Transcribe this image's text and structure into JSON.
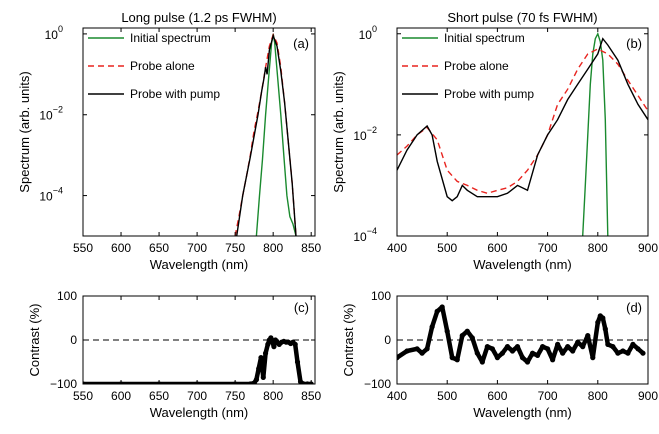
{
  "chart_data": [
    {
      "id": "a",
      "type": "line",
      "title": "Long pulse (1.2 ps FWHM)",
      "panel_label": "(a)",
      "xlabel": "Wavelength (nm)",
      "ylabel": "Spectrum (arb. units)",
      "x_ticks": [
        550,
        600,
        650,
        700,
        750,
        800,
        850
      ],
      "x_tick_labels": [
        "550",
        "600",
        "650",
        "700",
        "750",
        "800",
        "850"
      ],
      "y_scale": "log",
      "y_ticks": [
        1,
        0.01,
        0.0001
      ],
      "y_tick_labels": [
        {
          "base": "10",
          "exp": "0"
        },
        {
          "base": "10",
          "exp": "−2"
        },
        {
          "base": "10",
          "exp": "−4"
        }
      ],
      "xlim": [
        550,
        855
      ],
      "ylim": [
        1e-05,
        1.4
      ],
      "legend_position": "top-left",
      "series": [
        {
          "name": "Initial spectrum",
          "color": "#1a8a2e",
          "dash": "solid",
          "x": [
            778,
            782,
            786,
            790,
            794,
            798,
            800,
            802,
            806,
            810,
            814,
            818,
            822,
            826,
            830
          ],
          "y": [
            1e-05,
            0.0001,
            0.0008,
            0.01,
            0.08,
            0.6,
            1.0,
            0.6,
            0.08,
            0.01,
            0.001,
            0.0001,
            3e-05,
            2e-05,
            1e-05
          ]
        },
        {
          "name": "Probe alone",
          "color": "#e8241f",
          "dash": "6,4",
          "x": [
            750,
            755,
            760,
            765,
            770,
            775,
            780,
            785,
            790,
            795,
            800,
            805,
            810,
            815,
            820,
            825,
            830
          ],
          "y": [
            1e-05,
            3e-05,
            0.0001,
            0.0003,
            0.001,
            0.004,
            0.012,
            0.04,
            0.15,
            0.5,
            0.95,
            0.6,
            0.15,
            0.02,
            0.002,
            0.0002,
            1e-05
          ]
        },
        {
          "name": "Probe with pump",
          "color": "#000000",
          "dash": "solid",
          "x": [
            752,
            760,
            770,
            780,
            785,
            788,
            790,
            792,
            795,
            800,
            805,
            810,
            815,
            820,
            825,
            830
          ],
          "y": [
            1e-05,
            0.0001,
            0.0009,
            0.01,
            0.04,
            0.08,
            0.15,
            0.1,
            0.4,
            0.9,
            0.5,
            0.12,
            0.02,
            0.002,
            0.0002,
            1e-05
          ]
        }
      ]
    },
    {
      "id": "b",
      "type": "line",
      "title": "Short pulse (70 fs FWHM)",
      "panel_label": "(b)",
      "xlabel": "Wavelength (nm)",
      "ylabel": "Spectrum (arb. units)",
      "x_ticks": [
        400,
        500,
        600,
        700,
        800,
        900
      ],
      "x_tick_labels": [
        "400",
        "500",
        "600",
        "700",
        "800",
        "900"
      ],
      "y_scale": "log",
      "y_ticks": [
        1,
        0.01,
        0.0001
      ],
      "y_tick_labels": [
        {
          "base": "10",
          "exp": "0"
        },
        {
          "base": "10",
          "exp": "−2"
        },
        {
          "base": "10",
          "exp": "−4"
        }
      ],
      "xlim": [
        400,
        900
      ],
      "ylim": [
        0.0001,
        1.3
      ],
      "legend_position": "top-left",
      "series": [
        {
          "name": "Initial spectrum",
          "color": "#1a8a2e",
          "dash": "solid",
          "x": [
            770,
            775,
            780,
            785,
            790,
            795,
            800,
            805,
            810,
            815,
            820
          ],
          "y": [
            0.0001,
            0.001,
            0.01,
            0.1,
            0.4,
            0.8,
            1.0,
            0.7,
            0.3,
            0.02,
            0.0001
          ]
        },
        {
          "name": "Probe alone",
          "color": "#e8241f",
          "dash": "6,4",
          "x": [
            400,
            420,
            440,
            460,
            480,
            500,
            520,
            540,
            560,
            580,
            600,
            620,
            640,
            660,
            680,
            700,
            720,
            740,
            760,
            780,
            800,
            820,
            840,
            860,
            880,
            900
          ],
          "y": [
            0.004,
            0.006,
            0.01,
            0.014,
            0.008,
            0.002,
            0.0012,
            0.001,
            0.0008,
            0.0007,
            0.0008,
            0.0009,
            0.0012,
            0.002,
            0.004,
            0.01,
            0.04,
            0.08,
            0.2,
            0.4,
            0.5,
            0.4,
            0.25,
            0.12,
            0.06,
            0.03
          ]
        },
        {
          "name": "Probe with pump",
          "color": "#000000",
          "dash": "solid",
          "x": [
            400,
            420,
            440,
            460,
            470,
            480,
            500,
            510,
            520,
            530,
            540,
            560,
            580,
            600,
            620,
            640,
            660,
            680,
            700,
            720,
            740,
            760,
            780,
            800,
            810,
            820,
            840,
            860,
            880,
            900
          ],
          "y": [
            0.002,
            0.005,
            0.01,
            0.015,
            0.01,
            0.003,
            0.0006,
            0.0005,
            0.0006,
            0.001,
            0.0008,
            0.0006,
            0.0006,
            0.0006,
            0.0007,
            0.001,
            0.0008,
            0.004,
            0.01,
            0.02,
            0.05,
            0.1,
            0.2,
            0.4,
            0.8,
            0.6,
            0.3,
            0.1,
            0.04,
            0.02
          ]
        }
      ]
    },
    {
      "id": "c",
      "type": "scatter",
      "panel_label": "(c)",
      "xlabel": "Wavelength (nm)",
      "ylabel": "Contrast (%)",
      "x_ticks": [
        550,
        600,
        650,
        700,
        750,
        800,
        850
      ],
      "x_tick_labels": [
        "550",
        "600",
        "650",
        "700",
        "750",
        "800",
        "850"
      ],
      "y_ticks": [
        100,
        0,
        -100
      ],
      "y_tick_labels": [
        "100",
        "0",
        "−100"
      ],
      "xlim": [
        550,
        855
      ],
      "ylim": [
        -100,
        100
      ],
      "reference_line": 0,
      "series": [
        {
          "color": "#000000",
          "x": [
            550,
            600,
            650,
            700,
            750,
            770,
            775,
            778,
            781,
            784,
            787,
            790,
            793,
            795,
            797,
            799,
            801,
            803,
            805,
            808,
            811,
            814,
            817,
            820,
            823,
            826,
            829,
            832,
            836,
            840,
            845,
            850
          ],
          "y": [
            -100,
            -100,
            -100,
            -100,
            -100,
            -100,
            -98,
            -90,
            -65,
            -40,
            -85,
            -30,
            -10,
            0,
            5,
            -5,
            -15,
            0,
            -5,
            -10,
            -5,
            -3,
            -5,
            -5,
            -8,
            -5,
            -10,
            -50,
            -95,
            -100,
            -100,
            -100
          ]
        }
      ]
    },
    {
      "id": "d",
      "type": "scatter",
      "panel_label": "(d)",
      "xlabel": "Wavelength (nm)",
      "ylabel": "Contrast (%)",
      "x_ticks": [
        400,
        500,
        600,
        700,
        800,
        900
      ],
      "x_tick_labels": [
        "400",
        "500",
        "600",
        "700",
        "800",
        "900"
      ],
      "y_ticks": [
        100,
        0,
        -100
      ],
      "y_tick_labels": [
        "100",
        "0",
        "−100"
      ],
      "xlim": [
        400,
        900
      ],
      "ylim": [
        -100,
        100
      ],
      "reference_line": 0,
      "series": [
        {
          "color": "#000000",
          "x": [
            400,
            420,
            440,
            450,
            460,
            470,
            480,
            490,
            500,
            510,
            520,
            530,
            540,
            550,
            560,
            570,
            580,
            590,
            600,
            610,
            620,
            630,
            640,
            650,
            660,
            670,
            680,
            690,
            700,
            710,
            720,
            730,
            740,
            750,
            760,
            770,
            780,
            790,
            800,
            805,
            810,
            815,
            820,
            830,
            840,
            850,
            860,
            870,
            880,
            890
          ],
          "y": [
            -40,
            -25,
            -20,
            -30,
            -20,
            30,
            65,
            75,
            20,
            -40,
            -45,
            10,
            20,
            5,
            -30,
            -50,
            -15,
            -20,
            -40,
            -30,
            -15,
            -25,
            -15,
            -40,
            -50,
            -30,
            -35,
            -15,
            -20,
            -45,
            -10,
            -30,
            -15,
            -25,
            -5,
            -15,
            10,
            -40,
            40,
            55,
            50,
            25,
            -10,
            -15,
            -30,
            -25,
            -30,
            -10,
            -20,
            -30
          ]
        }
      ]
    }
  ]
}
